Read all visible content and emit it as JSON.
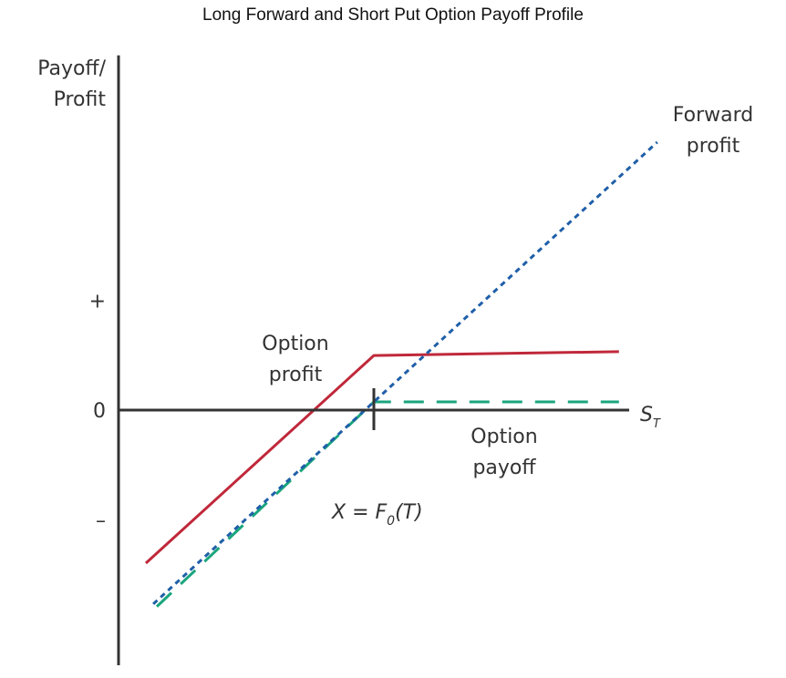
{
  "chart_data": {
    "type": "line",
    "title": "Long Forward and Short Put Option Payoff Profile",
    "ylabel_line1": "Payoff/",
    "ylabel_line2": "Profit",
    "xlabel": "S",
    "xlabel_sub": "T",
    "y_tick_labels": [
      {
        "label": "+",
        "value": 4.3
      },
      {
        "label": "0",
        "value": 0
      },
      {
        "label": "–",
        "value": -4.3
      }
    ],
    "strike_label": {
      "prefix": "X = F",
      "sub": "0",
      "suffix": "(T)",
      "x": 10
    },
    "xlim": [
      0,
      20
    ],
    "ylim": [
      -10,
      13.9
    ],
    "series": [
      {
        "name": "Forward profit",
        "label_line1": "Forward",
        "label_line2": "profit",
        "color": "#1f5fa8",
        "style": "dotted",
        "points": [
          [
            1.36,
            -7.6
          ],
          [
            21.1,
            10.5
          ]
        ]
      },
      {
        "name": "Option profit",
        "label_line1": "Option",
        "label_line2": "profit",
        "color": "#c0283a",
        "style": "solid",
        "points": [
          [
            1.07,
            -6.0
          ],
          [
            10,
            2.14
          ],
          [
            19.6,
            2.29
          ]
        ]
      },
      {
        "name": "Option payoff",
        "label_line1": "Option",
        "label_line2": "payoff",
        "color": "#1aa57e",
        "style": "dashed",
        "points": [
          [
            1.5,
            -7.7
          ],
          [
            10,
            0.32
          ],
          [
            19.6,
            0.32
          ]
        ]
      }
    ]
  }
}
